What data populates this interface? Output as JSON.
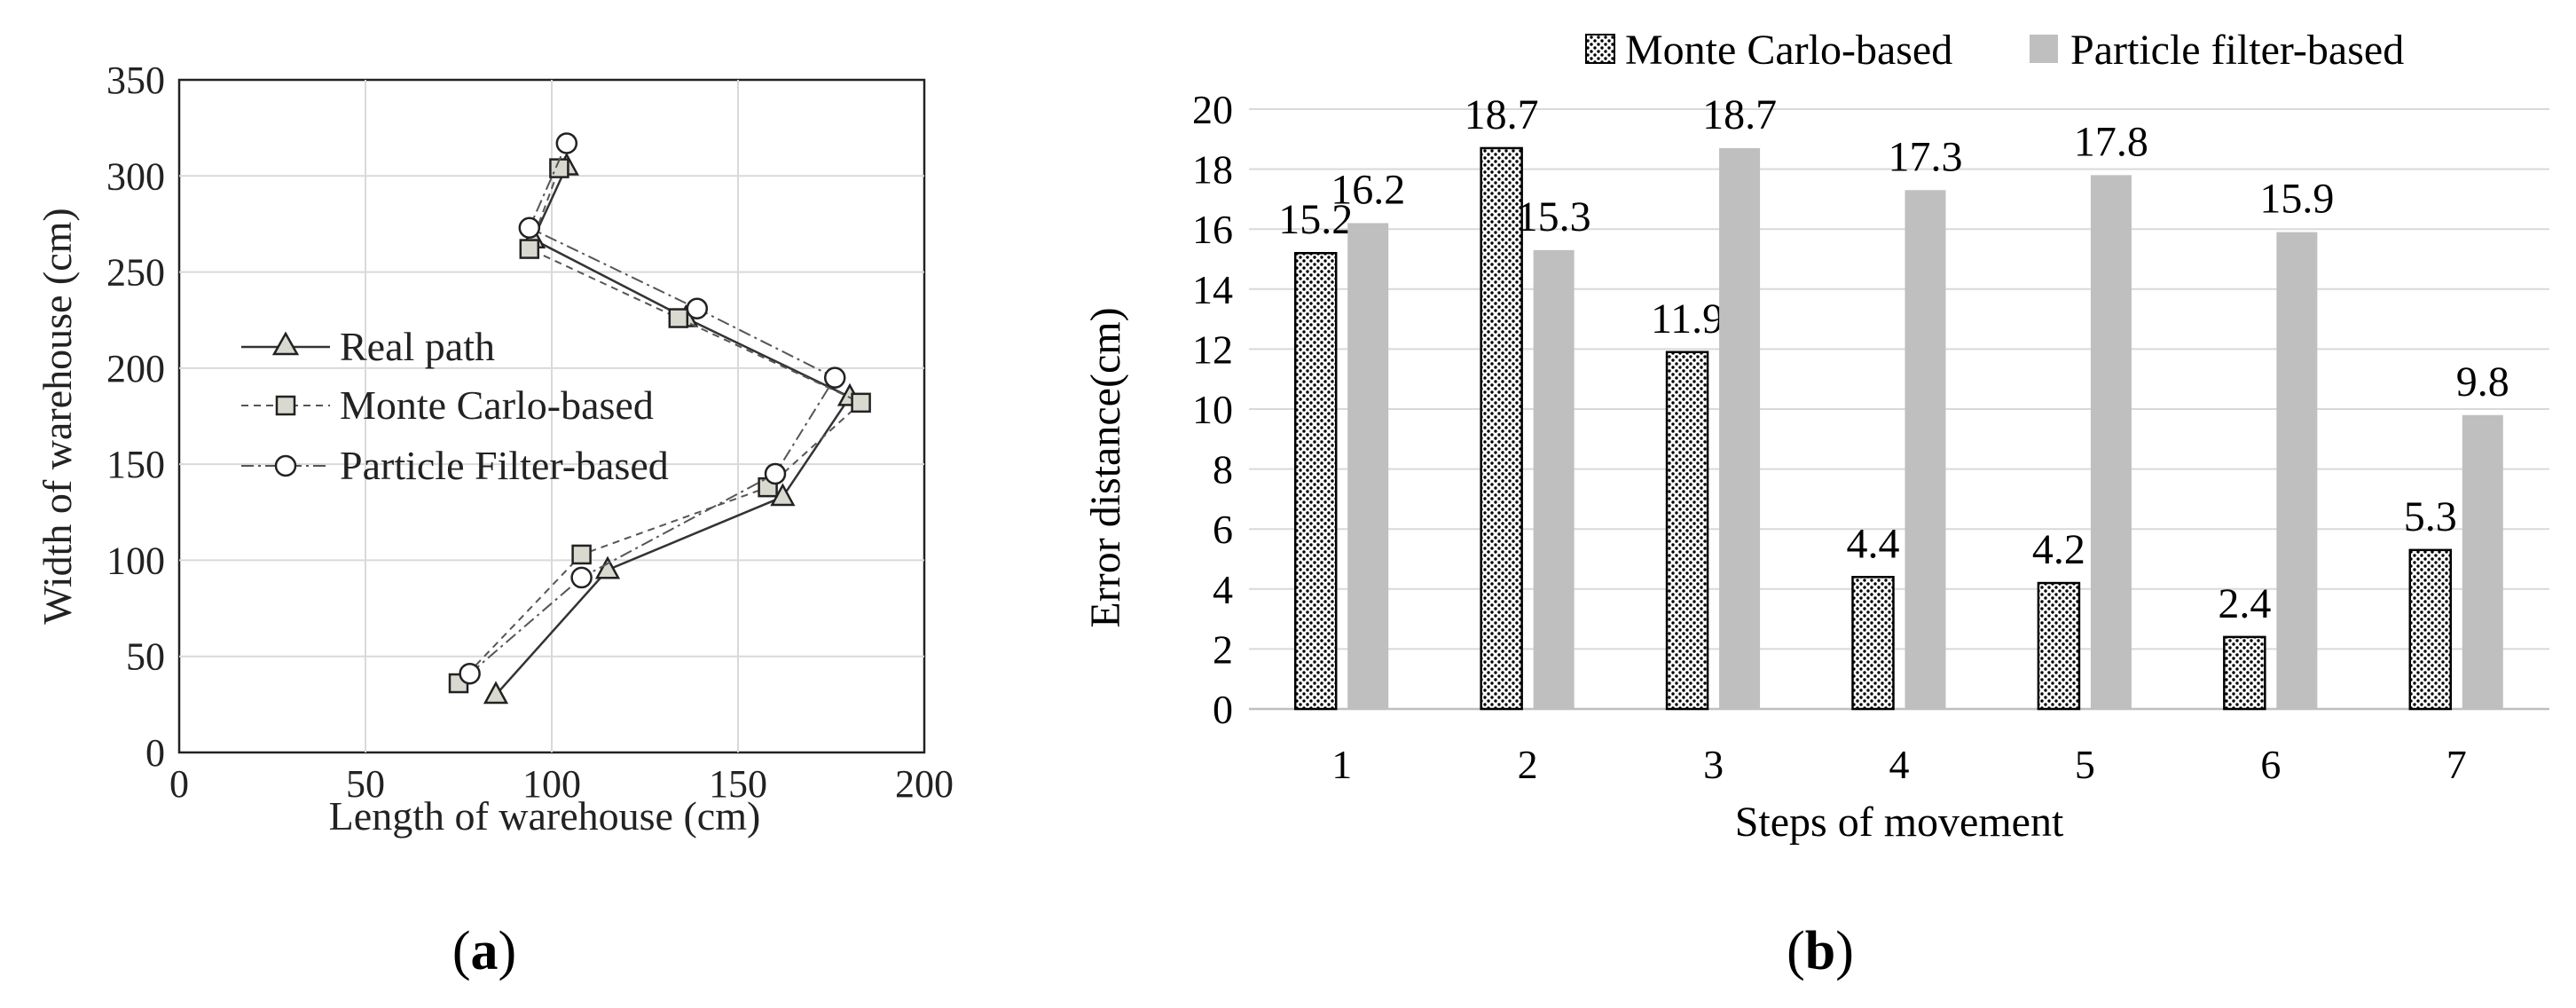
{
  "figure": {
    "panel_a_label": "a",
    "panel_b_label": "b"
  },
  "colors": {
    "pf_bar": "#bfbfbf",
    "mc_bar_dots": "#000000",
    "grid": "#d9d9d9",
    "axis_text": "#222222",
    "marker_fill": "#d9d9d0"
  },
  "chart_data": [
    {
      "id": "a",
      "type": "line",
      "title": "",
      "xlabel": "Length of warehouse (cm)",
      "ylabel": "Width of warehouse (cm)",
      "xlim": [
        0,
        200
      ],
      "ylim": [
        0,
        350
      ],
      "x_ticks": [
        0,
        50,
        100,
        150,
        200
      ],
      "y_ticks": [
        0,
        50,
        100,
        150,
        200,
        250,
        300,
        350
      ],
      "grid": true,
      "legend_position": "left",
      "series": [
        {
          "name": "Real path",
          "marker": "triangle",
          "line": "solid",
          "points": [
            [
              85,
              30
            ],
            [
              115,
              95
            ],
            [
              162,
              133
            ],
            [
              180,
              185
            ],
            [
              136,
              226
            ],
            [
              95,
              267
            ],
            [
              104,
              305
            ]
          ]
        },
        {
          "name": "Monte Carlo-based",
          "marker": "square",
          "line": "dashed",
          "points": [
            [
              75,
              36
            ],
            [
              108,
              103
            ],
            [
              158,
              138
            ],
            [
              183,
              182
            ],
            [
              134,
              226
            ],
            [
              94,
              262
            ],
            [
              102,
              304
            ]
          ]
        },
        {
          "name": "Particle Filter-based",
          "marker": "circle",
          "line": "dashdot",
          "points": [
            [
              78,
              41
            ],
            [
              108,
              91
            ],
            [
              160,
              145
            ],
            [
              176,
              195
            ],
            [
              139,
              231
            ],
            [
              94,
              273
            ],
            [
              104,
              317
            ]
          ]
        }
      ]
    },
    {
      "id": "b",
      "type": "bar",
      "title": "",
      "xlabel": "Steps of movement",
      "ylabel": "Error distance(cm)",
      "ylim": [
        0,
        20
      ],
      "y_ticks": [
        0,
        2,
        4,
        6,
        8,
        10,
        12,
        14,
        16,
        18,
        20
      ],
      "grid": true,
      "legend_position": "top",
      "categories": [
        "1",
        "2",
        "3",
        "4",
        "5",
        "6",
        "7"
      ],
      "series": [
        {
          "name": "Monte Carlo-based",
          "values": [
            15.2,
            18.7,
            11.9,
            4.4,
            4.2,
            2.4,
            5.3
          ],
          "labels": [
            "15.2",
            "18.7",
            "11.9",
            "4.4",
            "4.2",
            "2.4",
            "5.3"
          ]
        },
        {
          "name": "Particle filter-based",
          "values": [
            16.2,
            15.3,
            18.7,
            17.3,
            17.8,
            15.9,
            9.8
          ],
          "labels": [
            "16.2",
            "15.3",
            "18.7",
            "17.3",
            "17.8",
            "15.9",
            "9.8"
          ]
        }
      ]
    }
  ]
}
